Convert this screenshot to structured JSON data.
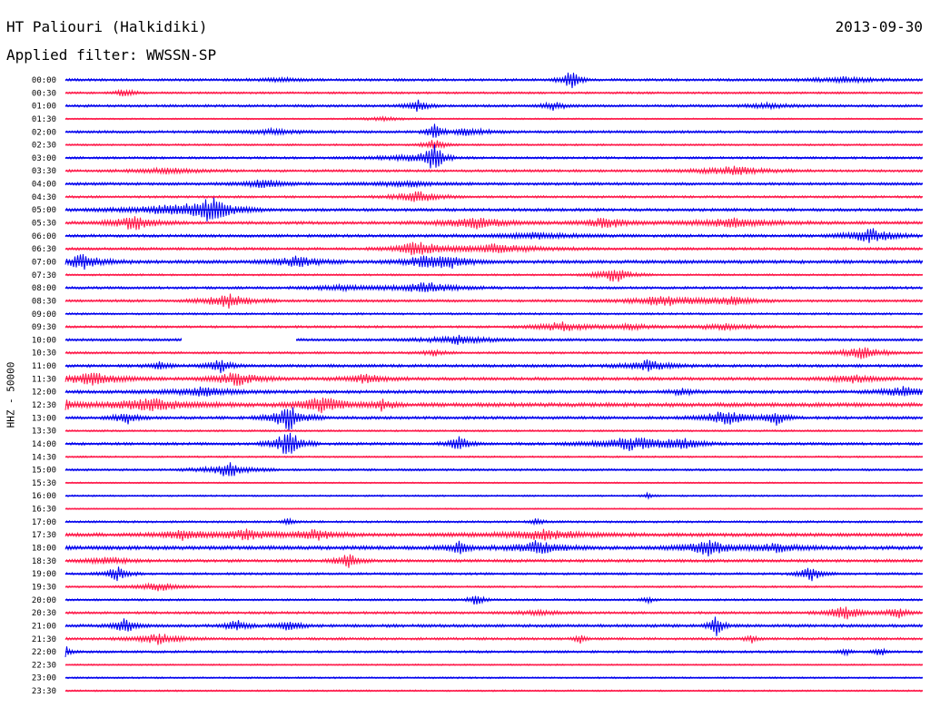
{
  "header": {
    "station": "HT Paliouri (Halkidiki)",
    "date": "2013-09-30",
    "filter": "Applied filter: WWSSN-SP"
  },
  "channel_label": "HHZ - 50000",
  "colors": {
    "even_row": "#0000ee",
    "odd_row": "#ff1a4a",
    "background": "#ffffff"
  },
  "chart_data": {
    "type": "line",
    "description_type": "helicorder",
    "rows": [
      {
        "label": "00:00",
        "amp": 1.2,
        "events": [
          [
            0.59,
            3.5,
            0.008
          ],
          [
            0.91,
            1.0,
            0.03
          ],
          [
            0.25,
            0.6,
            0.02
          ]
        ]
      },
      {
        "label": "00:30",
        "amp": 1.0,
        "events": [
          [
            0.07,
            1.5,
            0.008
          ]
        ]
      },
      {
        "label": "01:00",
        "amp": 1.2,
        "events": [
          [
            0.41,
            2.0,
            0.01
          ],
          [
            0.57,
            1.5,
            0.01
          ],
          [
            0.82,
            0.8,
            0.02
          ]
        ]
      },
      {
        "label": "01:30",
        "amp": 0.7,
        "events": [
          [
            0.37,
            0.6,
            0.02
          ]
        ]
      },
      {
        "label": "02:00",
        "amp": 1.2,
        "events": [
          [
            0.43,
            3.0,
            0.006
          ],
          [
            0.47,
            1.2,
            0.02
          ],
          [
            0.24,
            0.8,
            0.03
          ]
        ]
      },
      {
        "label": "02:30",
        "amp": 0.9,
        "events": [
          [
            0.43,
            2.0,
            0.01
          ]
        ]
      },
      {
        "label": "03:00",
        "amp": 1.1,
        "events": [
          [
            0.43,
            5.0,
            0.008
          ],
          [
            0.4,
            1.0,
            0.03
          ]
        ]
      },
      {
        "label": "03:30",
        "amp": 1.2,
        "events": [
          [
            0.12,
            0.9,
            0.03
          ],
          [
            0.78,
            1.6,
            0.03
          ]
        ]
      },
      {
        "label": "04:00",
        "amp": 1.3,
        "events": [
          [
            0.23,
            1.5,
            0.02
          ],
          [
            0.4,
            1.0,
            0.03
          ]
        ]
      },
      {
        "label": "04:30",
        "amp": 1.1,
        "events": [
          [
            0.41,
            2.0,
            0.02
          ]
        ]
      },
      {
        "label": "05:00",
        "amp": 1.4,
        "events": [
          [
            0.17,
            4.0,
            0.02
          ],
          [
            0.12,
            1.5,
            0.04
          ]
        ]
      },
      {
        "label": "05:30",
        "amp": 1.4,
        "events": [
          [
            0.08,
            2.5,
            0.02
          ],
          [
            0.48,
            2.0,
            0.03
          ],
          [
            0.63,
            2.0,
            0.02
          ],
          [
            0.78,
            1.5,
            0.04
          ]
        ]
      },
      {
        "label": "06:00",
        "amp": 1.4,
        "events": [
          [
            0.94,
            2.5,
            0.02
          ],
          [
            0.55,
            1.0,
            0.04
          ]
        ]
      },
      {
        "label": "06:30",
        "amp": 1.3,
        "events": [
          [
            0.41,
            2.5,
            0.02
          ],
          [
            0.5,
            1.5,
            0.04
          ]
        ]
      },
      {
        "label": "07:00",
        "amp": 1.6,
        "events": [
          [
            0.02,
            2.5,
            0.02
          ],
          [
            0.27,
            2.0,
            0.02
          ],
          [
            0.42,
            2.0,
            0.02
          ],
          [
            0.45,
            1.5,
            0.02
          ]
        ]
      },
      {
        "label": "07:30",
        "amp": 0.9,
        "events": [
          [
            0.64,
            3.0,
            0.015
          ]
        ]
      },
      {
        "label": "08:00",
        "amp": 1.2,
        "events": [
          [
            0.42,
            1.8,
            0.03
          ],
          [
            0.32,
            0.8,
            0.03
          ]
        ]
      },
      {
        "label": "08:30",
        "amp": 1.2,
        "events": [
          [
            0.19,
            2.5,
            0.02
          ],
          [
            0.7,
            2.0,
            0.03
          ],
          [
            0.78,
            1.5,
            0.02
          ]
        ]
      },
      {
        "label": "09:00",
        "amp": 1.0,
        "events": []
      },
      {
        "label": "09:30",
        "amp": 1.1,
        "events": [
          [
            0.58,
            2.0,
            0.02
          ],
          [
            0.77,
            1.0,
            0.03
          ],
          [
            0.66,
            1.0,
            0.02
          ]
        ]
      },
      {
        "label": "10:00",
        "amp": 1.2,
        "events": [
          [
            0.46,
            1.5,
            0.03
          ]
        ]
      },
      {
        "label": "10:30",
        "amp": 1.1,
        "events": [
          [
            0.43,
            1.0,
            0.01
          ],
          [
            0.93,
            2.0,
            0.02
          ]
        ]
      },
      {
        "label": "11:00",
        "amp": 1.4,
        "events": [
          [
            0.18,
            2.5,
            0.01
          ],
          [
            0.68,
            1.8,
            0.02
          ],
          [
            0.11,
            1.2,
            0.01
          ]
        ]
      },
      {
        "label": "11:30",
        "amp": 1.5,
        "events": [
          [
            0.03,
            2.0,
            0.03
          ],
          [
            0.2,
            2.5,
            0.02
          ],
          [
            0.35,
            1.5,
            0.02
          ],
          [
            0.92,
            1.5,
            0.02
          ]
        ]
      },
      {
        "label": "12:00",
        "amp": 1.5,
        "events": [
          [
            0.16,
            1.5,
            0.03
          ],
          [
            0.98,
            2.0,
            0.02
          ],
          [
            0.72,
            1.2,
            0.01
          ]
        ]
      },
      {
        "label": "12:30",
        "amp": 1.9,
        "events": [
          [
            0.1,
            2.0,
            0.04
          ],
          [
            0.3,
            3.0,
            0.02
          ],
          [
            0.37,
            2.0,
            0.01
          ],
          [
            0.0,
            1.5,
            0.01
          ]
        ]
      },
      {
        "label": "13:00",
        "amp": 1.4,
        "events": [
          [
            0.07,
            2.5,
            0.01
          ],
          [
            0.26,
            4.5,
            0.015
          ],
          [
            0.77,
            2.5,
            0.02
          ],
          [
            0.83,
            2.5,
            0.01
          ]
        ]
      },
      {
        "label": "13:30",
        "amp": 0.9,
        "events": []
      },
      {
        "label": "14:00",
        "amp": 1.3,
        "events": [
          [
            0.26,
            5.0,
            0.012
          ],
          [
            0.46,
            2.5,
            0.01
          ],
          [
            0.66,
            2.5,
            0.03
          ],
          [
            0.72,
            1.5,
            0.02
          ]
        ]
      },
      {
        "label": "14:30",
        "amp": 0.8,
        "events": []
      },
      {
        "label": "15:00",
        "amp": 1.0,
        "events": [
          [
            0.19,
            2.5,
            0.02
          ]
        ]
      },
      {
        "label": "15:30",
        "amp": 0.7,
        "events": []
      },
      {
        "label": "16:00",
        "amp": 0.8,
        "events": [
          [
            0.68,
            1.0,
            0.005
          ]
        ]
      },
      {
        "label": "16:30",
        "amp": 0.6,
        "events": []
      },
      {
        "label": "17:00",
        "amp": 1.0,
        "events": [
          [
            0.26,
            1.2,
            0.005
          ],
          [
            0.55,
            1.2,
            0.005
          ]
        ]
      },
      {
        "label": "17:30",
        "amp": 1.7,
        "events": [
          [
            0.14,
            2.0,
            0.02
          ],
          [
            0.21,
            1.8,
            0.02
          ],
          [
            0.29,
            2.0,
            0.02
          ],
          [
            0.56,
            1.6,
            0.04
          ]
        ]
      },
      {
        "label": "18:00",
        "amp": 1.8,
        "events": [
          [
            0.46,
            2.0,
            0.01
          ],
          [
            0.55,
            2.5,
            0.02
          ],
          [
            0.75,
            2.5,
            0.02
          ],
          [
            0.83,
            1.5,
            0.02
          ]
        ]
      },
      {
        "label": "18:30",
        "amp": 1.4,
        "events": [
          [
            0.33,
            2.5,
            0.01
          ],
          [
            0.05,
            1.2,
            0.02
          ]
        ]
      },
      {
        "label": "19:00",
        "amp": 1.1,
        "events": [
          [
            0.06,
            2.8,
            0.01
          ],
          [
            0.87,
            2.8,
            0.01
          ]
        ]
      },
      {
        "label": "19:30",
        "amp": 0.9,
        "events": [
          [
            0.11,
            1.5,
            0.02
          ]
        ]
      },
      {
        "label": "20:00",
        "amp": 1.0,
        "events": [
          [
            0.48,
            2.5,
            0.006
          ],
          [
            0.68,
            1.0,
            0.005
          ]
        ]
      },
      {
        "label": "20:30",
        "amp": 1.2,
        "events": [
          [
            0.91,
            2.5,
            0.015
          ],
          [
            0.97,
            2.0,
            0.01
          ],
          [
            0.55,
            0.8,
            0.02
          ]
        ]
      },
      {
        "label": "21:00",
        "amp": 1.4,
        "events": [
          [
            0.07,
            2.5,
            0.01
          ],
          [
            0.2,
            2.0,
            0.01
          ],
          [
            0.26,
            2.0,
            0.01
          ],
          [
            0.76,
            4.0,
            0.006
          ]
        ]
      },
      {
        "label": "21:30",
        "amp": 1.2,
        "events": [
          [
            0.11,
            2.0,
            0.02
          ],
          [
            0.6,
            1.5,
            0.005
          ],
          [
            0.8,
            1.5,
            0.005
          ]
        ]
      },
      {
        "label": "22:00",
        "amp": 1.1,
        "events": [
          [
            0.0,
            2.5,
            0.005
          ],
          [
            0.95,
            1.8,
            0.005
          ],
          [
            0.91,
            1.2,
            0.005
          ]
        ]
      },
      {
        "label": "22:30",
        "amp": 0.7,
        "events": []
      },
      {
        "label": "23:00",
        "amp": 0.8,
        "events": []
      },
      {
        "label": "23:30",
        "amp": 0.8,
        "events": []
      }
    ]
  }
}
